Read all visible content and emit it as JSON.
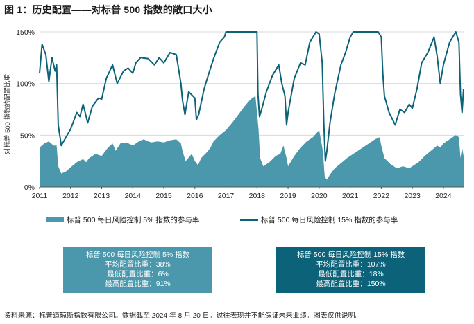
{
  "title": "图 1：历史配置——对标普 500 指数的敞口大小",
  "source": "资料来源：标普道琼斯指数有限公司。数据截至 2024 年 8 月 20 日。过往表现并不能保证未来业绩。图表仅供说明。",
  "colors": {
    "area": "#4b97ac",
    "line": "#0b6279",
    "box1": "#4b97ac",
    "box2": "#0b6279"
  },
  "chart_data": {
    "type": "area+line",
    "title": "历史配置——对标普 500 指数的敞口大小",
    "xlabel": "",
    "ylabel": "对标普 500 指数的配置比重",
    "x_range": [
      2011.0,
      2024.65
    ],
    "ylim": [
      0,
      150
    ],
    "y_ticks": [
      "0%",
      "50%",
      "100%",
      "150%"
    ],
    "x_ticks": [
      "2011",
      "2012",
      "2013",
      "2014",
      "2015",
      "2016",
      "2017",
      "2018",
      "2019",
      "2020",
      "2021",
      "2022",
      "2023",
      "2024"
    ],
    "series": [
      {
        "name": "标普 500 每日风险控制 5% 指数的参与率",
        "kind": "area",
        "x": [
          2011.0,
          2011.15,
          2011.3,
          2011.45,
          2011.55,
          2011.6,
          2011.7,
          2011.85,
          2012.0,
          2012.2,
          2012.4,
          2012.5,
          2012.6,
          2012.8,
          2013.0,
          2013.2,
          2013.35,
          2013.45,
          2013.6,
          2013.8,
          2014.0,
          2014.2,
          2014.35,
          2014.5,
          2014.6,
          2014.8,
          2015.0,
          2015.2,
          2015.4,
          2015.55,
          2015.6,
          2015.7,
          2015.9,
          2016.0,
          2016.1,
          2016.2,
          2016.4,
          2016.5,
          2016.6,
          2016.8,
          2017.0,
          2017.2,
          2017.4,
          2017.6,
          2017.8,
          2017.95,
          2018.05,
          2018.1,
          2018.2,
          2018.4,
          2018.6,
          2018.75,
          2018.85,
          2018.95,
          2019.0,
          2019.2,
          2019.4,
          2019.6,
          2019.8,
          2020.0,
          2020.12,
          2020.18,
          2020.25,
          2020.35,
          2020.5,
          2020.7,
          2020.9,
          2021.0,
          2021.2,
          2021.4,
          2021.6,
          2021.8,
          2021.95,
          2022.0,
          2022.1,
          2022.3,
          2022.5,
          2022.7,
          2022.9,
          2023.0,
          2023.2,
          2023.4,
          2023.6,
          2023.8,
          2023.9,
          2024.0,
          2024.2,
          2024.4,
          2024.5,
          2024.55,
          2024.6,
          2024.65
        ],
        "values": [
          38,
          42,
          44,
          40,
          40,
          20,
          13,
          15,
          19,
          24,
          27,
          24,
          28,
          32,
          30,
          38,
          42,
          35,
          42,
          43,
          40,
          44,
          46,
          44,
          43,
          44,
          43,
          45,
          46,
          42,
          35,
          25,
          32,
          25,
          21,
          28,
          34,
          38,
          44,
          50,
          55,
          62,
          70,
          78,
          85,
          88,
          55,
          28,
          20,
          24,
          30,
          32,
          40,
          28,
          20,
          30,
          38,
          44,
          48,
          55,
          35,
          10,
          7,
          12,
          18,
          23,
          28,
          30,
          34,
          38,
          42,
          46,
          48,
          40,
          28,
          22,
          18,
          20,
          18,
          20,
          24,
          30,
          35,
          40,
          38,
          42,
          46,
          50,
          48,
          28,
          38,
          30
        ]
      },
      {
        "name": "标普 500 每日风险控制 15% 指数的参与率",
        "kind": "line",
        "x": [
          2011.0,
          2011.08,
          2011.2,
          2011.3,
          2011.4,
          2011.5,
          2011.55,
          2011.6,
          2011.7,
          2011.85,
          2012.0,
          2012.2,
          2012.3,
          2012.4,
          2012.55,
          2012.7,
          2012.9,
          2013.0,
          2013.15,
          2013.35,
          2013.5,
          2013.7,
          2013.85,
          2014.0,
          2014.1,
          2014.25,
          2014.5,
          2014.7,
          2014.85,
          2015.0,
          2015.2,
          2015.4,
          2015.55,
          2015.6,
          2015.68,
          2015.8,
          2016.0,
          2016.05,
          2016.12,
          2016.3,
          2016.45,
          2016.6,
          2016.8,
          2016.95,
          2017.0,
          2018.0,
          2018.03,
          2018.08,
          2018.15,
          2018.3,
          2018.5,
          2018.7,
          2018.8,
          2018.9,
          2018.95,
          2019.0,
          2019.2,
          2019.4,
          2019.55,
          2019.7,
          2019.9,
          2020.0,
          2020.1,
          2020.15,
          2020.2,
          2020.25,
          2020.35,
          2020.5,
          2020.7,
          2020.85,
          2021.0,
          2021.1,
          2021.3,
          2021.5,
          2021.7,
          2021.9,
          2022.0,
          2022.05,
          2022.1,
          2022.25,
          2022.45,
          2022.6,
          2022.75,
          2022.9,
          2023.0,
          2023.15,
          2023.3,
          2023.5,
          2023.7,
          2023.8,
          2023.9,
          2024.0,
          2024.2,
          2024.4,
          2024.5,
          2024.55,
          2024.6,
          2024.65
        ],
        "values": [
          110,
          138,
          128,
          102,
          125,
          112,
          118,
          60,
          40,
          48,
          56,
          72,
          68,
          80,
          62,
          78,
          86,
          85,
          105,
          118,
          100,
          112,
          115,
          110,
          120,
          125,
          124,
          118,
          125,
          120,
          130,
          128,
          100,
          84,
          70,
          92,
          86,
          65,
          70,
          95,
          110,
          124,
          140,
          145,
          150,
          150,
          90,
          68,
          75,
          92,
          108,
          118,
          100,
          88,
          60,
          72,
          105,
          120,
          118,
          140,
          150,
          148,
          120,
          62,
          25,
          35,
          62,
          90,
          118,
          130,
          145,
          150,
          150,
          150,
          150,
          150,
          145,
          110,
          88,
          72,
          60,
          75,
          72,
          80,
          76,
          95,
          120,
          130,
          145,
          126,
          100,
          118,
          140,
          150,
          140,
          90,
          72,
          95
        ]
      }
    ],
    "legend": [
      "标普 500 每日风险控制 5% 指数的参与率",
      "标普 500 每日风险控制 15% 指数的参与率"
    ]
  },
  "box1": {
    "title": "标普 500 每日风险控制 5% 指数",
    "avg_label": "平均配置比重：",
    "avg": "38%",
    "min_label": "最低配置比重：",
    "min": "6%",
    "max_label": "最高配置比重：",
    "max": "91%"
  },
  "box2": {
    "title": "标普 500 每日风险控制 15% 指数",
    "avg_label": "平均配置比重：",
    "avg": "107%",
    "min_label": "最低配置比重：",
    "min": "18%",
    "max_label": "最高配置比重：",
    "max": "150%"
  }
}
